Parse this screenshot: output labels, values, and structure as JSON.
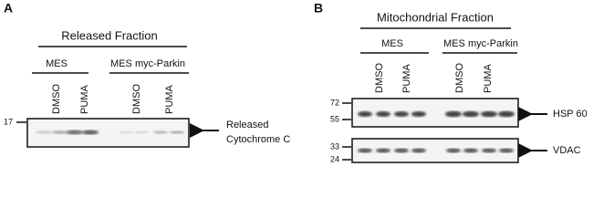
{
  "panel_a": {
    "label": "A",
    "title": "Released Fraction",
    "groups": [
      "MES",
      "MES myc-Parkin"
    ],
    "lanes": [
      "DMSO",
      "PUMA",
      "DMSO",
      "PUMA"
    ],
    "markers": [
      17
    ],
    "band_label": [
      "Released",
      "Cytochrome C"
    ]
  },
  "panel_b": {
    "label": "B",
    "title": "Mitochondrial Fraction",
    "groups": [
      "MES",
      "MES myc-Parkin"
    ],
    "lanes": [
      "DMSO",
      "PUMA",
      "DMSO",
      "PUMA"
    ],
    "blots": [
      {
        "markers": [
          72,
          55
        ],
        "label": "HSP 60"
      },
      {
        "markers": [
          33,
          24
        ],
        "label": "VDAC"
      }
    ]
  }
}
